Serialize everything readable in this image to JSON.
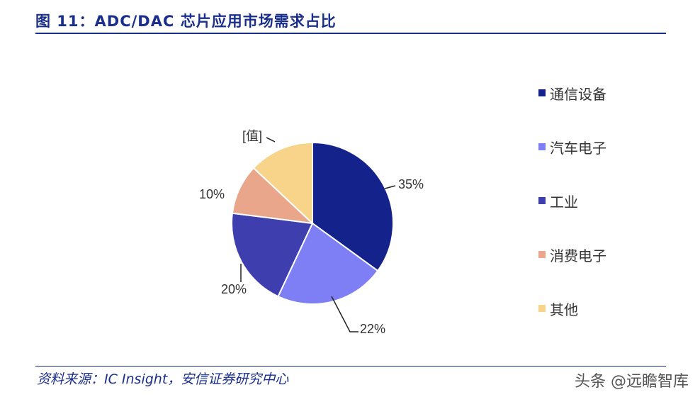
{
  "header": {
    "title": "图 11：ADC/DAC 芯片应用市场需求占比"
  },
  "footer": {
    "source": "资料来源：IC Insight，安信证券研究中心",
    "watermark": "头条 @远瞻智库"
  },
  "chart_data": {
    "type": "pie",
    "slices": [
      {
        "name": "通信设备",
        "value": 35,
        "label": "35%",
        "color": "#14238c"
      },
      {
        "name": "汽车电子",
        "value": 22,
        "label": "22%",
        "color": "#7e7ef5"
      },
      {
        "name": "工业",
        "value": 20,
        "label": "20%",
        "color": "#3e3eaf"
      },
      {
        "name": "消费电子",
        "value": 10,
        "label": "10%",
        "color": "#e9a68a"
      },
      {
        "name": "其他",
        "value": 13,
        "label": "[值]",
        "color": "#f8d38a"
      }
    ],
    "legend_position": "right"
  }
}
